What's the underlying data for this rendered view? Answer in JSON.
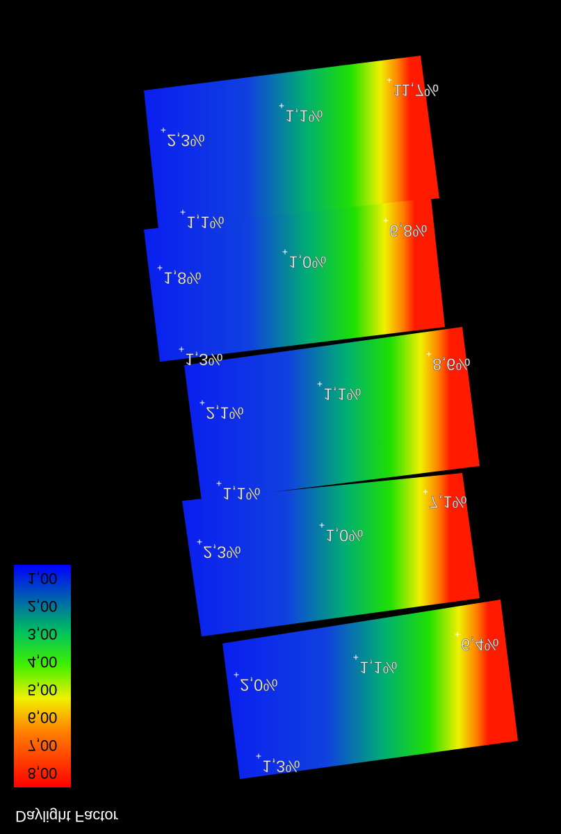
{
  "legend": {
    "title": "Daylight Factor",
    "ticks": [
      "1,00",
      "2,00",
      "3,00",
      "4,00",
      "5,00",
      "6,00",
      "7,00",
      "8,00"
    ]
  },
  "annotations": [
    {
      "text": "11,7%"
    },
    {
      "text": "1,1%"
    },
    {
      "text": "2,3%"
    },
    {
      "text": "1,1%"
    },
    {
      "text": "6,8%"
    },
    {
      "text": "1,0%"
    },
    {
      "text": "1,8%"
    },
    {
      "text": "1,3%"
    },
    {
      "text": "8,6%"
    },
    {
      "text": "1,1%"
    },
    {
      "text": "2,1%"
    },
    {
      "text": "1,1%"
    },
    {
      "text": "7,1%"
    },
    {
      "text": "1,0%"
    },
    {
      "text": "2,3%"
    },
    {
      "text": "6,4%"
    },
    {
      "text": "1,1%"
    },
    {
      "text": "2,0%"
    },
    {
      "text": "1,3%"
    }
  ]
}
